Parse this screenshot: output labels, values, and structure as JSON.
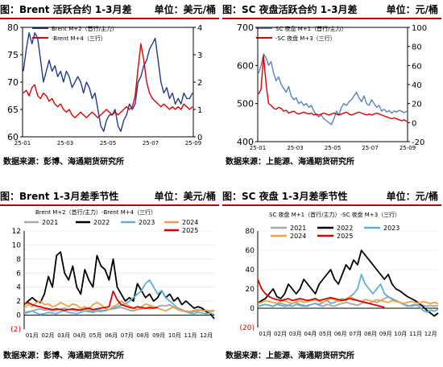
{
  "panels": [
    {
      "title": "图：Brent 活跃合约 1-3月差",
      "unit": "单位：美元/桶",
      "source": "数据来源：彭博、海通期货研究所",
      "chart_data": {
        "type": "line",
        "x_ticks": [
          "25-01",
          "25-03",
          "25-05",
          "25-07",
          "25-09"
        ],
        "left_ylim": [
          60,
          80
        ],
        "left_ticks": [
          "60",
          "65",
          "70",
          "75",
          "80"
        ],
        "right_ylim": [
          0,
          4
        ],
        "right_ticks": [
          "0",
          "1",
          "2",
          "3",
          "4"
        ],
        "series": [
          {
            "name": "Brent M+2（首行/主力）",
            "axis": "left",
            "color": "#1f3a93",
            "values": [
              72,
              76,
              79,
              77,
              79,
              78,
              74,
              70,
              72,
              74,
              72,
              73,
              71,
              72,
              70,
              72,
              71,
              69,
              70,
              71,
              70,
              68,
              70,
              69,
              67,
              68,
              65,
              62,
              61,
              63,
              64,
              64,
              65,
              62,
              61,
              63,
              64,
              66,
              65,
              66,
              70,
              71,
              73,
              74,
              76,
              77,
              78,
              74,
              70,
              68,
              69,
              67,
              68,
              66,
              67,
              66,
              68,
              67,
              67,
              68
            ]
          },
          {
            "name": "-Brent M+4（三行）",
            "axis": "right",
            "color": "#e00000",
            "values": [
              1.6,
              1.7,
              1.5,
              1.8,
              1.9,
              1.5,
              1.4,
              1.6,
              1.5,
              1.3,
              1.4,
              1.2,
              1.1,
              1.2,
              1.0,
              0.9,
              1.0,
              0.8,
              0.7,
              0.8,
              0.9,
              0.8,
              0.7,
              0.8,
              0.9,
              0.8,
              0.7,
              0.8,
              0.9,
              1.0,
              0.9,
              0.8,
              0.9,
              0.8,
              0.9,
              1.0,
              1.1,
              1.0,
              1.1,
              1.5,
              2.5,
              3.4,
              2.8,
              2.0,
              1.6,
              1.4,
              1.3,
              1.2,
              1.1,
              1.2,
              1.1,
              1.0,
              1.1,
              1.0,
              1.1,
              1.0,
              1.2,
              1.1,
              1.0,
              1.1
            ]
          }
        ]
      }
    },
    {
      "title": "图：SC 夜盘活跃合约 1-3月差",
      "unit": "单位：元/桶",
      "source": "数据来源：上能源、海通期货研究所",
      "chart_data": {
        "type": "line",
        "x_ticks": [
          "25-01",
          "25-03",
          "25-05",
          "25-07",
          "25-09"
        ],
        "left_ylim": [
          400,
          700
        ],
        "left_ticks": [
          "400",
          "500",
          "600",
          "700"
        ],
        "right_ylim": [
          -20,
          100
        ],
        "right_ticks": [
          "-20",
          "0",
          "20",
          "40",
          "60",
          "80",
          "100"
        ],
        "series": [
          {
            "name": "SC 夜盘 M+1（首行/主力）",
            "axis": "left",
            "color": "#5a7fc4",
            "values": [
              580,
              600,
              630,
              620,
              600,
              610,
              580,
              560,
              570,
              550,
              540,
              530,
              545,
              520,
              510,
              515,
              500,
              505,
              495,
              500,
              490,
              495,
              480,
              470,
              465,
              470,
              460,
              455,
              450,
              445,
              460,
              480,
              470,
              490,
              500,
              495,
              505,
              510,
              520,
              530,
              515,
              505,
              520,
              500,
              495,
              510,
              500,
              490,
              495,
              480,
              485,
              478,
              482,
              475,
              480,
              478,
              482,
              480,
              476,
              480
            ]
          },
          {
            "name": "-SC 夜盘 M+3（三行）",
            "axis": "right",
            "color": "#e00000",
            "values": [
              30,
              35,
              70,
              40,
              20,
              18,
              15,
              14,
              16,
              15,
              12,
              13,
              10,
              11,
              12,
              10,
              9,
              10,
              11,
              10,
              9,
              10,
              8,
              9,
              8,
              9,
              10,
              9,
              8,
              9,
              10,
              9,
              8,
              9,
              10,
              11,
              9,
              8,
              9,
              10,
              11,
              10,
              9,
              8,
              9,
              8,
              9,
              10,
              9,
              8,
              7,
              6,
              5,
              4,
              5,
              4,
              3,
              2,
              3,
              1
            ]
          }
        ]
      }
    },
    {
      "title": "图：Brent 1-3月差季节性",
      "unit": "单位：美元/桶",
      "source": "数据来源：彭博、海通期货研究所",
      "chart_data": {
        "type": "line",
        "subtitle": "Brent M+2（首行/主力）-Brent M+4（三行）",
        "x_ticks": [
          "01月",
          "02月",
          "03月",
          "04月",
          "05月",
          "06月",
          "07月",
          "08月",
          "09月",
          "10月",
          "11月",
          "12月"
        ],
        "ylim": [
          -2,
          12
        ],
        "y_ticks": [
          "(2)",
          "0",
          "2",
          "4",
          "6",
          "8",
          "10",
          "12"
        ],
        "series": [
          {
            "name": "2021",
            "color": "#a6a6a6",
            "values": [
              0.4,
              0.5,
              0.6,
              0.8,
              0.9,
              0.7,
              0.8,
              0.6,
              0.7,
              0.9,
              1.0,
              0.8,
              0.7,
              0.6,
              0.8,
              0.9,
              0.7,
              0.6,
              0.8,
              0.7,
              0.6,
              0.8,
              0.9,
              1.0,
              1.1,
              0.9,
              0.7,
              0.6,
              0.8,
              0.9,
              1.0,
              0.9,
              1.0,
              1.2,
              1.4,
              1.3,
              1.5,
              1.1,
              0.8,
              0.6,
              0.5,
              0.4,
              0.5,
              0.6,
              0.8,
              0.7,
              0.6,
              0.7
            ]
          },
          {
            "name": "2022",
            "color": "#000000",
            "values": [
              1.5,
              2.0,
              2.5,
              2.0,
              1.8,
              3.0,
              5.5,
              4.0,
              8.5,
              9.0,
              6.0,
              5.0,
              7.0,
              4.0,
              3.0,
              6.5,
              5.0,
              4.0,
              8.5,
              7.0,
              6.5,
              5.0,
              8.0,
              4.0,
              3.0,
              2.0,
              2.5,
              2.0,
              4.5,
              3.5,
              2.5,
              3.0,
              2.0,
              2.5,
              3.5,
              2.5,
              3.0,
              2.0,
              2.5,
              1.5,
              2.0,
              1.5,
              1.0,
              1.2,
              1.0,
              0.5,
              0.2,
              -0.5
            ]
          },
          {
            "name": "2023",
            "color": "#5bafe0",
            "values": [
              0.2,
              0.4,
              0.6,
              0.3,
              0.1,
              0.2,
              0.4,
              0.3,
              0.2,
              0.5,
              0.6,
              0.4,
              0.3,
              0.2,
              0.4,
              0.6,
              0.5,
              0.4,
              0.6,
              0.5,
              0.7,
              0.8,
              1.0,
              1.2,
              1.4,
              1.6,
              2.0,
              2.5,
              3.0,
              3.5,
              4.5,
              5.0,
              4.0,
              3.0,
              3.5,
              2.5,
              2.0,
              1.5,
              1.0,
              0.8,
              0.5,
              0.3,
              0.2,
              0.4,
              0.3,
              0.2,
              0.3,
              0.1
            ]
          },
          {
            "name": "2024",
            "color": "#f4a040",
            "values": [
              1.0,
              1.5,
              1.2,
              1.8,
              2.0,
              1.5,
              1.6,
              1.2,
              1.4,
              1.8,
              1.5,
              1.2,
              1.6,
              1.4,
              1.0,
              1.2,
              0.8,
              1.5,
              1.8,
              1.5,
              1.0,
              0.8,
              1.2,
              1.5,
              2.0,
              1.6,
              1.3,
              1.0,
              0.8,
              1.2,
              1.6,
              1.4,
              1.2,
              1.0,
              0.8,
              0.6,
              0.9,
              1.2,
              0.9,
              0.7,
              0.6,
              0.5,
              0.7,
              0.8,
              0.6,
              0.7,
              0.5,
              0.6
            ]
          },
          {
            "name": "2025",
            "color": "#e00000",
            "values": [
              1.6,
              1.8,
              1.5,
              1.3,
              1.2,
              1.0,
              0.9,
              0.8,
              0.9,
              0.8,
              0.7,
              0.8,
              0.9,
              0.8,
              0.7,
              0.9,
              1.0,
              0.8,
              0.9,
              1.0,
              1.1,
              1.2,
              3.4,
              2.2,
              1.5,
              1.3,
              1.1,
              1.0,
              1.2,
              1.1,
              1.0,
              1.1,
              1.0,
              1.1
            ]
          }
        ]
      }
    },
    {
      "title": "图：SC 夜盘 1-3月差季节性",
      "unit": "单位：元/桶",
      "source": "数据来源：上能源、海通期货研究所",
      "chart_data": {
        "type": "line",
        "subtitle": "SC 夜盘 M+1（首行/主力）-SC 夜盘 M+3（三行）",
        "x_ticks": [
          "01月",
          "02月",
          "03月",
          "04月",
          "05月",
          "06月",
          "07月",
          "08月",
          "09月",
          "10月",
          "11月",
          "12月"
        ],
        "ylim": [
          -20,
          80
        ],
        "y_ticks": [
          "(20)",
          "0",
          "20",
          "40",
          "60",
          "80"
        ],
        "series": [
          {
            "name": "2021",
            "color": "#a6a6a6",
            "values": [
              2,
              3,
              4,
              3,
              2,
              4,
              5,
              4,
              3,
              5,
              6,
              4,
              3,
              2,
              4,
              5,
              3,
              2,
              4,
              3,
              2,
              4,
              5,
              6,
              5,
              4,
              3,
              5,
              6,
              5,
              7,
              6,
              8,
              10,
              12,
              9,
              8,
              6,
              4,
              3,
              2,
              3,
              4,
              3,
              2,
              3,
              2,
              3
            ]
          },
          {
            "name": "2022",
            "color": "#000000",
            "values": [
              5,
              8,
              10,
              15,
              20,
              12,
              10,
              15,
              25,
              20,
              15,
              20,
              30,
              25,
              20,
              15,
              25,
              30,
              35,
              40,
              30,
              25,
              35,
              45,
              40,
              50,
              45,
              60,
              55,
              50,
              45,
              40,
              35,
              30,
              35,
              25,
              20,
              18,
              15,
              12,
              10,
              8,
              5,
              2,
              -2,
              -5,
              -8,
              -5
            ]
          },
          {
            "name": "2023",
            "color": "#5bafe0",
            "values": [
              2,
              3,
              4,
              3,
              2,
              4,
              3,
              2,
              3,
              2,
              4,
              3,
              2,
              3,
              4,
              5,
              4,
              6,
              8,
              5,
              6,
              8,
              10,
              8,
              12,
              15,
              20,
              35,
              25,
              20,
              15,
              20,
              25,
              15,
              12,
              10,
              8,
              6,
              4,
              2,
              3,
              4,
              2,
              -2,
              -4,
              -2,
              -3,
              -1
            ]
          },
          {
            "name": "2024",
            "color": "#f4a040",
            "values": [
              5,
              6,
              8,
              7,
              6,
              5,
              7,
              8,
              6,
              5,
              7,
              8,
              6,
              7,
              8,
              9,
              7,
              6,
              8,
              10,
              9,
              7,
              8,
              10,
              12,
              10,
              8,
              7,
              9,
              8,
              7,
              9,
              8,
              7,
              6,
              8,
              7,
              6,
              5,
              6,
              7,
              6,
              5,
              7,
              6,
              5,
              6,
              5
            ]
          },
          {
            "name": "2025",
            "color": "#e00000",
            "values": [
              30,
              20,
              15,
              12,
              10,
              9,
              8,
              9,
              10,
              8,
              9,
              10,
              9,
              8,
              9,
              10,
              8,
              9,
              10,
              11,
              10,
              9,
              8,
              9,
              10,
              9,
              8,
              7,
              6,
              5,
              4,
              3,
              2,
              1
            ]
          }
        ]
      }
    }
  ]
}
